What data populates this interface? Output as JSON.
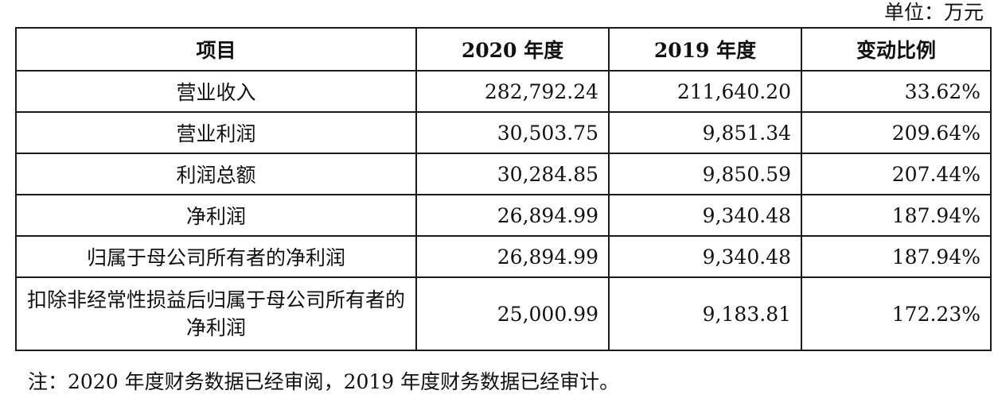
{
  "unit_label": "单位：万元",
  "table": {
    "headers": [
      "项目",
      "2020 年度",
      "2019 年度",
      "变动比例"
    ],
    "rows": [
      {
        "item": "营业收入",
        "y2020": "282,792.24",
        "y2019": "211,640.20",
        "change": "33.62%"
      },
      {
        "item": "营业利润",
        "y2020": "30,503.75",
        "y2019": "9,851.34",
        "change": "209.64%"
      },
      {
        "item": "利润总额",
        "y2020": "30,284.85",
        "y2019": "9,850.59",
        "change": "207.44%"
      },
      {
        "item": "净利润",
        "y2020": "26,894.99",
        "y2019": "9,340.48",
        "change": "187.94%"
      },
      {
        "item": "归属于母公司所有者的净利润",
        "y2020": "26,894.99",
        "y2019": "9,340.48",
        "change": "187.94%"
      },
      {
        "item": "扣除非经常性损益后归属于母公司所有者的净利润",
        "y2020": "25,000.99",
        "y2019": "9,183.81",
        "change": "172.23%"
      }
    ]
  },
  "note": "注：2020 年度财务数据已经审阅，2019 年度财务数据已经审计。"
}
